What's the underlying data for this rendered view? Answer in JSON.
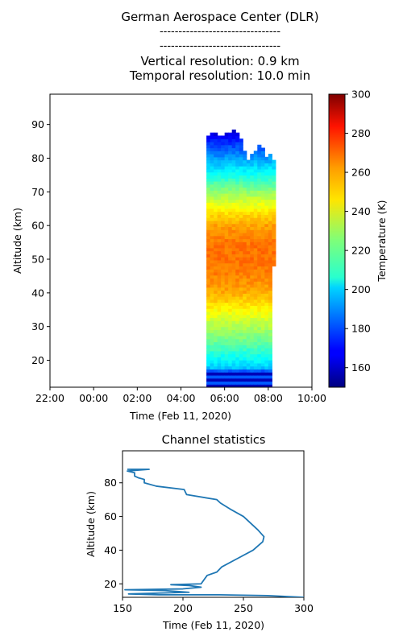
{
  "title_block": {
    "main": "German Aerospace Center (DLR)",
    "sep1": "--------------------------------",
    "sep2": "--------------------------------",
    "vres": "Vertical resolution: 0.9 km",
    "tres": "Temporal resolution: 10.0 min"
  },
  "chart_data": [
    {
      "type": "heatmap",
      "xlabel": "Time (Feb 11, 2020)",
      "ylabel": "Altitude (km)",
      "x_ticks": [
        "22:00",
        "00:00",
        "02:00",
        "04:00",
        "06:00",
        "08:00",
        "10:00"
      ],
      "x_range_hours": [
        -2,
        10
      ],
      "y_ticks": [
        20,
        30,
        40,
        50,
        60,
        70,
        80,
        90
      ],
      "ylim": [
        12,
        99
      ],
      "data_time_range": [
        "05:10",
        "08:20"
      ],
      "colorbar": {
        "label": "Temperature (K)",
        "range": [
          150,
          300
        ],
        "ticks": [
          160,
          180,
          200,
          220,
          240,
          260,
          280,
          300
        ],
        "colormap": "jet"
      },
      "profile_altitudes": [
        12,
        14,
        16,
        18,
        20,
        25,
        30,
        35,
        40,
        45,
        50,
        55,
        60,
        65,
        70,
        75,
        80,
        85,
        88
      ],
      "profile_temperatures": [
        160,
        175,
        165,
        200,
        205,
        220,
        232,
        244,
        256,
        262,
        265,
        264,
        258,
        245,
        228,
        210,
        192,
        175,
        160
      ],
      "top_edge": [
        {
          "t": 5.2,
          "alt": 86
        },
        {
          "t": 5.5,
          "alt": 87.5
        },
        {
          "t": 5.8,
          "alt": 86.5
        },
        {
          "t": 6.1,
          "alt": 87
        },
        {
          "t": 6.4,
          "alt": 88
        },
        {
          "t": 6.7,
          "alt": 86
        },
        {
          "t": 6.9,
          "alt": 83
        },
        {
          "t": 7.0,
          "alt": 78
        },
        {
          "t": 7.2,
          "alt": 80
        },
        {
          "t": 7.4,
          "alt": 82
        },
        {
          "t": 7.6,
          "alt": 84
        },
        {
          "t": 7.8,
          "alt": 82
        },
        {
          "t": 7.95,
          "alt": 79
        },
        {
          "t": 8.1,
          "alt": 81
        },
        {
          "t": 8.25,
          "alt": 79
        },
        {
          "t": 8.3,
          "alt": 74
        }
      ]
    },
    {
      "type": "line",
      "title": "Channel statistics",
      "xlabel": "Time (Feb 11, 2020)",
      "ylabel": "Altitude (km)",
      "xlim": [
        150,
        300
      ],
      "ylim": [
        12,
        99
      ],
      "x_ticks": [
        150,
        200,
        250,
        300
      ],
      "y_ticks": [
        20,
        40,
        60,
        80
      ],
      "series": [
        {
          "color": "#1f77b4",
          "x": [
            300,
            270,
            230,
            180,
            155,
            205,
            185,
            152,
            200,
            215,
            205,
            190,
            215,
            220,
            228,
            232,
            245,
            258,
            266,
            267,
            262,
            250,
            240,
            231,
            228,
            203,
            201,
            178,
            168,
            168,
            163,
            160,
            160,
            154,
            172,
            154
          ],
          "y": [
            12,
            13,
            13.5,
            13.5,
            14,
            15,
            16,
            16.5,
            17,
            18,
            19,
            19.5,
            20,
            25,
            27,
            30,
            35,
            40,
            45,
            48,
            52,
            60,
            64,
            68,
            70,
            73,
            76,
            78,
            80,
            82,
            83,
            84,
            86,
            87,
            88,
            88
          ]
        }
      ]
    }
  ]
}
